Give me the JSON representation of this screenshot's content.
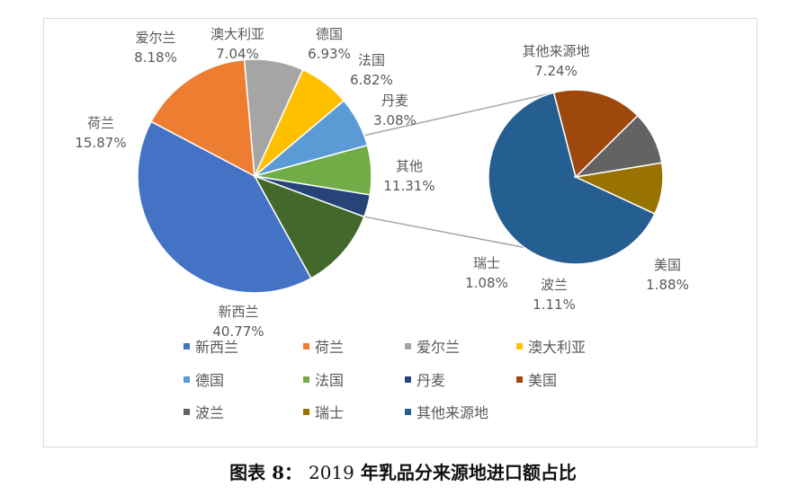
{
  "caption": {
    "prefix": "图表 8：",
    "year": "2019",
    "suffix": "年乳品分来源地进口额占比"
  },
  "chart_data": {
    "type": "pie",
    "subtype": "pie-of-pie",
    "title": "",
    "main_slices": [
      {
        "name": "新西兰",
        "value": 40.77,
        "label": "40.77%",
        "color": "#4472c4"
      },
      {
        "name": "荷兰",
        "value": 15.87,
        "label": "15.87%",
        "color": "#ed7d31"
      },
      {
        "name": "爱尔兰",
        "value": 8.18,
        "label": "8.18%",
        "color": "#a5a5a5"
      },
      {
        "name": "澳大利亚",
        "value": 7.04,
        "label": "7.04%",
        "color": "#ffc000"
      },
      {
        "name": "德国",
        "value": 6.93,
        "label": "6.93%",
        "color": "#5b9bd5"
      },
      {
        "name": "法国",
        "value": 6.82,
        "label": "6.82%",
        "color": "#70ad47"
      },
      {
        "name": "丹麦",
        "value": 3.08,
        "label": "3.08%",
        "color": "#264478"
      },
      {
        "name": "其他",
        "value": 11.31,
        "label": "11.31%",
        "color": "#43682b"
      }
    ],
    "secondary_slices": [
      {
        "name": "其他来源地",
        "value": 7.24,
        "label": "7.24%",
        "color": "#255e91"
      },
      {
        "name": "美国",
        "value": 1.88,
        "label": "1.88%",
        "color": "#9e480e"
      },
      {
        "name": "波兰",
        "value": 1.11,
        "label": "1.11%",
        "color": "#636363"
      },
      {
        "name": "瑞士",
        "value": 1.08,
        "label": "1.08%",
        "color": "#997300"
      }
    ],
    "legend": {
      "position": "bottom",
      "entries": [
        {
          "name": "新西兰",
          "color": "#4472c4"
        },
        {
          "name": "荷兰",
          "color": "#ed7d31"
        },
        {
          "name": "爱尔兰",
          "color": "#a5a5a5"
        },
        {
          "name": "澳大利亚",
          "color": "#ffc000"
        },
        {
          "name": "德国",
          "color": "#5b9bd5"
        },
        {
          "name": "法国",
          "color": "#70ad47"
        },
        {
          "name": "丹麦",
          "color": "#264478"
        },
        {
          "name": "美国",
          "color": "#9e480e"
        },
        {
          "name": "波兰",
          "color": "#636363"
        },
        {
          "name": "瑞士",
          "color": "#997300"
        },
        {
          "name": "其他来源地",
          "color": "#255e91"
        }
      ]
    }
  }
}
